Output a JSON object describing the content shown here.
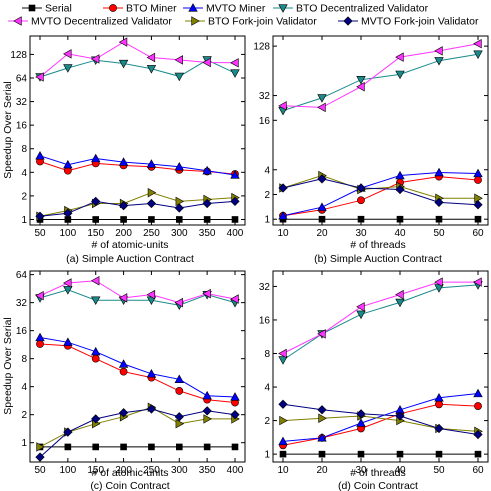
{
  "legend": [
    {
      "name": "Serial",
      "color": "#000000",
      "marker": "square"
    },
    {
      "name": "BTO Miner",
      "color": "#ff0000",
      "marker": "circle"
    },
    {
      "name": "MVTO Miner",
      "color": "#0000ff",
      "marker": "tri-up"
    },
    {
      "name": "BTO Decentralized Validator",
      "color": "#1a8a8a",
      "marker": "tri-down"
    },
    {
      "name": "MVTO Decentralized Validator",
      "color": "#ff33ff",
      "marker": "tri-left"
    },
    {
      "name": "BTO Fork-join Validator",
      "color": "#808000",
      "marker": "tri-right"
    },
    {
      "name": "MVTO Fork-join Validator",
      "color": "#000080",
      "marker": "diamond"
    }
  ],
  "chart_data": [
    {
      "type": "line",
      "caption": "(a) Simple Auction Contract",
      "xlabel": "# of atomic-units",
      "ylabel": "Speedup Over Serial",
      "yscale": "log2",
      "ylim": [
        0.85,
        220
      ],
      "yticks": [
        1,
        2,
        4,
        8,
        16,
        32,
        64,
        128
      ],
      "x": [
        50,
        100,
        150,
        200,
        250,
        300,
        350,
        400
      ],
      "series": [
        {
          "name": "Serial",
          "values": [
            1,
            1,
            1,
            1,
            1,
            1,
            1,
            1
          ]
        },
        {
          "name": "BTO Miner",
          "values": [
            5.5,
            4.2,
            5.2,
            4.9,
            4.7,
            4.3,
            4.1,
            3.8
          ]
        },
        {
          "name": "MVTO Miner",
          "values": [
            6.5,
            5.0,
            6.0,
            5.4,
            5.1,
            4.7,
            4.2,
            3.7
          ]
        },
        {
          "name": "BTO Decentralized Validator",
          "values": [
            66,
            86,
            108,
            98,
            84,
            67,
            109,
            74
          ]
        },
        {
          "name": "MVTO Decentralized Validator",
          "values": [
            66,
            130,
            112,
            184,
            117,
            109,
            101,
            100
          ]
        },
        {
          "name": "BTO Fork-join Validator",
          "values": [
            1.1,
            1.3,
            1.6,
            1.6,
            2.2,
            1.7,
            1.8,
            1.9
          ]
        },
        {
          "name": "MVTO Fork-join Validator",
          "values": [
            1.1,
            1.2,
            1.7,
            1.5,
            1.6,
            1.4,
            1.6,
            1.7
          ]
        }
      ]
    },
    {
      "type": "line",
      "caption": "(b) Simple Auction Contract",
      "xlabel": "# of threads",
      "ylabel": "",
      "yscale": "log2",
      "ylim": [
        0.85,
        170
      ],
      "yticks": [
        1,
        2,
        4,
        16,
        32,
        128
      ],
      "x": [
        10,
        20,
        30,
        40,
        50,
        60
      ],
      "series": [
        {
          "name": "Serial",
          "values": [
            1,
            1,
            1,
            1,
            1,
            1
          ]
        },
        {
          "name": "BTO Miner",
          "values": [
            1.1,
            1.3,
            1.7,
            2.8,
            3.3,
            3.0
          ]
        },
        {
          "name": "MVTO Miner",
          "values": [
            1.1,
            1.4,
            2.4,
            3.4,
            3.7,
            3.6
          ]
        },
        {
          "name": "BTO Decentralized Validator",
          "values": [
            21,
            30,
            50,
            58,
            85,
            102
          ]
        },
        {
          "name": "MVTO Decentralized Validator",
          "values": [
            24,
            23,
            41,
            94,
            112,
            137
          ]
        },
        {
          "name": "BTO Fork-join Validator",
          "values": [
            2.4,
            3.4,
            2.3,
            2.5,
            1.8,
            1.8
          ]
        },
        {
          "name": "MVTO Fork-join Validator",
          "values": [
            2.4,
            3.1,
            2.4,
            2.3,
            1.6,
            1.5
          ]
        }
      ]
    },
    {
      "type": "line",
      "caption": "(c) Coin Contract",
      "xlabel": "# of atomic-units",
      "ylabel": "Speedup Over Serial",
      "yscale": "log2",
      "ylim": [
        0.62,
        70
      ],
      "yticks": [
        1,
        2,
        4,
        8,
        16,
        32,
        64
      ],
      "x": [
        50,
        100,
        150,
        200,
        250,
        300,
        350,
        400
      ],
      "series": [
        {
          "name": "Serial",
          "values": [
            0.9,
            0.9,
            0.9,
            0.9,
            0.9,
            0.9,
            0.9,
            0.9
          ]
        },
        {
          "name": "BTO Miner",
          "values": [
            11.5,
            11,
            8.0,
            5.8,
            5.0,
            3.6,
            2.9,
            2.7
          ]
        },
        {
          "name": "MVTO Miner",
          "values": [
            13.5,
            12,
            9.5,
            7.0,
            5.5,
            4.8,
            3.2,
            3.1
          ]
        },
        {
          "name": "BTO Decentralized Validator",
          "values": [
            36,
            44,
            34,
            34,
            34,
            30,
            39,
            32
          ]
        },
        {
          "name": "MVTO Decentralized Validator",
          "values": [
            38,
            52,
            55,
            36,
            39,
            32,
            40,
            35
          ]
        },
        {
          "name": "BTO Fork-join Validator",
          "values": [
            0.9,
            1.3,
            1.6,
            1.9,
            2.4,
            1.6,
            1.8,
            1.8
          ]
        },
        {
          "name": "MVTO Fork-join Validator",
          "values": [
            0.7,
            1.3,
            1.8,
            2.1,
            2.3,
            1.9,
            2.2,
            2.0
          ]
        }
      ]
    },
    {
      "type": "line",
      "caption": "(d) Coin Contract",
      "xlabel": "# of threads",
      "ylabel": "",
      "yscale": "log2",
      "ylim": [
        0.85,
        44
      ],
      "yticks": [
        1,
        2,
        4,
        8,
        16,
        32
      ],
      "x": [
        10,
        20,
        30,
        40,
        50,
        60
      ],
      "series": [
        {
          "name": "Serial",
          "values": [
            1,
            1,
            1,
            1,
            1,
            1
          ]
        },
        {
          "name": "BTO Miner",
          "values": [
            1.2,
            1.4,
            1.7,
            2.3,
            2.8,
            2.7
          ]
        },
        {
          "name": "MVTO Miner",
          "values": [
            1.3,
            1.4,
            1.9,
            2.5,
            3.2,
            3.5
          ]
        },
        {
          "name": "BTO Decentralized Validator",
          "values": [
            7,
            12,
            18,
            23,
            31,
            33
          ]
        },
        {
          "name": "MVTO Decentralized Validator",
          "values": [
            8,
            12,
            21,
            27,
            35,
            35
          ]
        },
        {
          "name": "BTO Fork-join Validator",
          "values": [
            2.0,
            2.1,
            2.2,
            2.0,
            1.7,
            1.6
          ]
        },
        {
          "name": "MVTO Fork-join Validator",
          "values": [
            2.8,
            2.5,
            2.3,
            2.2,
            1.7,
            1.5
          ]
        }
      ]
    }
  ]
}
